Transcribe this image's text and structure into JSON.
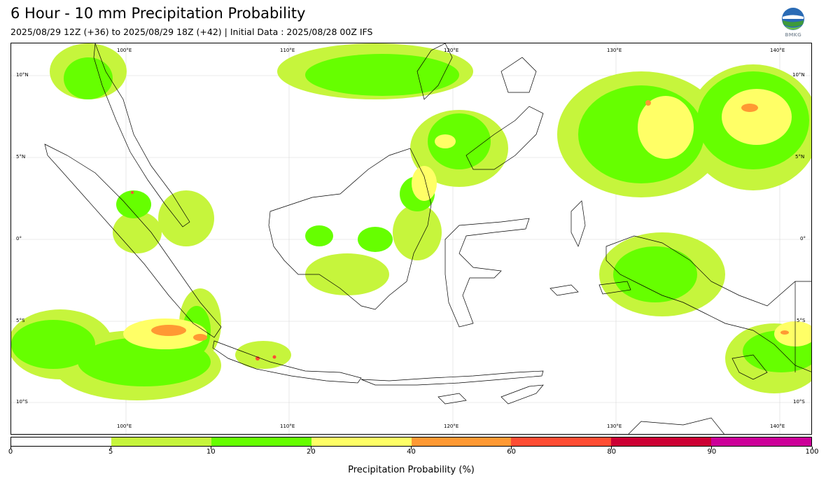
{
  "title": "6 Hour - 10 mm Precipitation Probability",
  "subtitle": "2025/08/29 12Z (+36) to 2025/08/29 18Z (+42) | Initial Data : 2025/08/28 00Z IFS",
  "logo": {
    "icon": "bmkg-logo-icon",
    "text": "BMKG"
  },
  "map": {
    "lon_labels": [
      "100°E",
      "110°E",
      "120°E",
      "130°E",
      "140°E"
    ],
    "lat_labels": [
      "10°N",
      "5°N",
      "0°",
      "5°S",
      "10°S"
    ],
    "lat_labels_right": [
      "10°N",
      "5°N",
      "0°",
      "5°S",
      "10°S"
    ]
  },
  "colorbar": {
    "label": "Precipitation Probability (%)",
    "ticks": [
      "0",
      "5",
      "10",
      "20",
      "40",
      "60",
      "80",
      "90",
      "100"
    ],
    "colors": [
      "#ffffff",
      "#c6f53c",
      "#66ff00",
      "#ffff66",
      "#ff9933",
      "#ff4d33",
      "#cc0033",
      "#cc0099"
    ]
  }
}
